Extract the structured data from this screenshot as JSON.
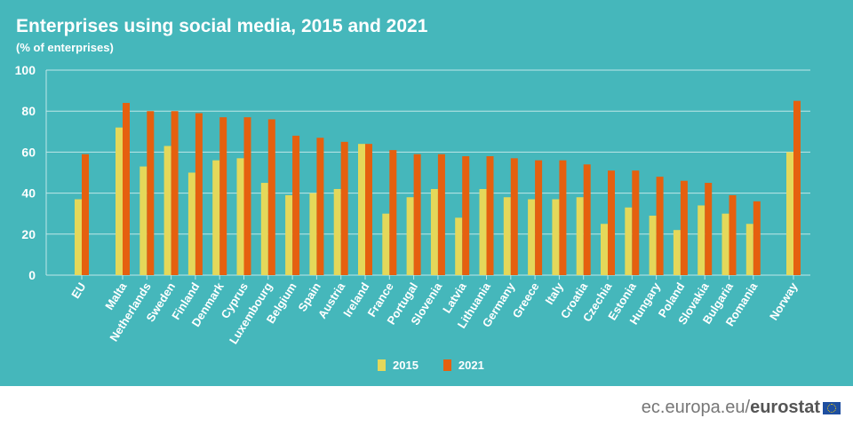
{
  "title": "Enterprises using social media, 2015 and 2021",
  "subtitle": "(% of enterprises)",
  "footer": {
    "domain": "ec.europa.eu/",
    "brand": "eurostat"
  },
  "colors": {
    "background": "#45b7bb",
    "s2015": "#e4d85a",
    "s2021": "#e5600f"
  },
  "chart_data": {
    "type": "bar",
    "title": "Enterprises using social media, 2015 and 2021",
    "ylabel": "(% of enterprises)",
    "ylim": [
      0,
      100
    ],
    "yticks": [
      0,
      20,
      40,
      60,
      80,
      100
    ],
    "grid": true,
    "legend": "bottom",
    "categories": [
      "EU",
      "Malta",
      "Netherlands",
      "Sweden",
      "Finland",
      "Denmark",
      "Cyprus",
      "Luxembourg",
      "Belgium",
      "Spain",
      "Austria",
      "Ireland",
      "France",
      "Portugal",
      "Slovenia",
      "Latvia",
      "Lithuania",
      "Germany",
      "Greece",
      "Italy",
      "Croatia",
      "Czechia",
      "Estonia",
      "Hungary",
      "Poland",
      "Slovakia",
      "Bulgaria",
      "Romania",
      "Norway"
    ],
    "series": [
      {
        "name": "2015",
        "values": [
          37,
          72,
          53,
          63,
          50,
          56,
          57,
          45,
          39,
          40,
          42,
          64,
          30,
          38,
          42,
          28,
          42,
          38,
          37,
          37,
          38,
          25,
          33,
          29,
          22,
          34,
          30,
          25,
          60
        ]
      },
      {
        "name": "2021",
        "values": [
          59,
          84,
          80,
          80,
          79,
          77,
          77,
          76,
          68,
          67,
          65,
          64,
          61,
          59,
          59,
          58,
          58,
          57,
          56,
          56,
          54,
          51,
          51,
          48,
          46,
          45,
          39,
          36,
          85
        ]
      }
    ]
  }
}
